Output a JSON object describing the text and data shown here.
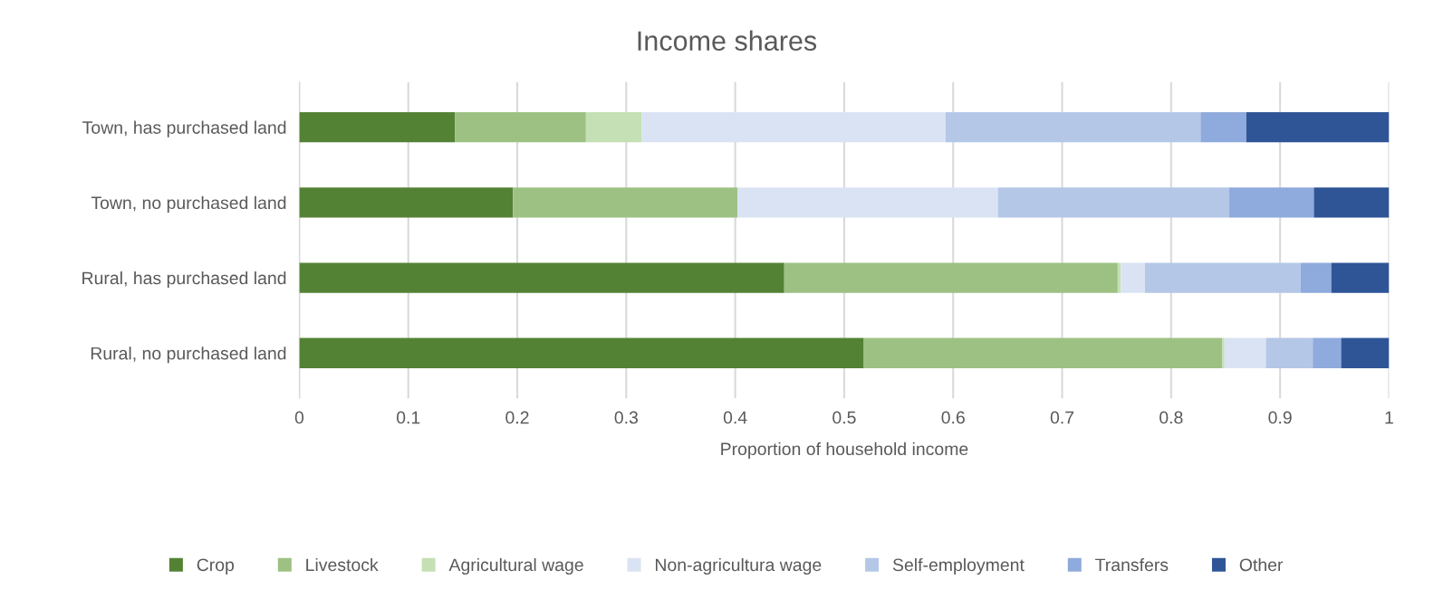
{
  "chart_data": {
    "type": "bar",
    "orientation": "horizontal",
    "stacked": true,
    "title": "Income shares",
    "xlabel": "Proportion of household income",
    "categories": [
      "Town, has purchased land",
      "Town, no purchased land",
      "Rural, has purchased land",
      "Rural, no purchased land"
    ],
    "series": [
      {
        "name": "Crop",
        "color": "#548235",
        "values": [
          0.143,
          0.196,
          0.445,
          0.518
        ]
      },
      {
        "name": "Livestock",
        "color": "#9dc183",
        "values": [
          0.12,
          0.206,
          0.306,
          0.329
        ]
      },
      {
        "name": "Agricultural wage",
        "color": "#c5e0b4",
        "values": [
          0.051,
          0,
          0.003,
          0.002
        ]
      },
      {
        "name": "Non-agricultura wage",
        "color": "#dae3f3",
        "values": [
          0.279,
          0.239,
          0.022,
          0.038
        ]
      },
      {
        "name": "Self-employment",
        "color": "#b4c7e7",
        "values": [
          0.234,
          0.212,
          0.143,
          0.043
        ]
      },
      {
        "name": "Transfers",
        "color": "#8faadc",
        "values": [
          0.042,
          0.078,
          0.028,
          0.026
        ]
      },
      {
        "name": "Other",
        "color": "#2f5597",
        "values": [
          0.131,
          0.069,
          0.053,
          0.044
        ]
      }
    ],
    "xlim": [
      0,
      1
    ],
    "xticks": [
      0,
      0.1,
      0.2,
      0.3,
      0.4,
      0.5,
      0.6,
      0.7,
      0.8,
      0.9,
      1
    ],
    "grid": "x",
    "legend": "bottom"
  }
}
